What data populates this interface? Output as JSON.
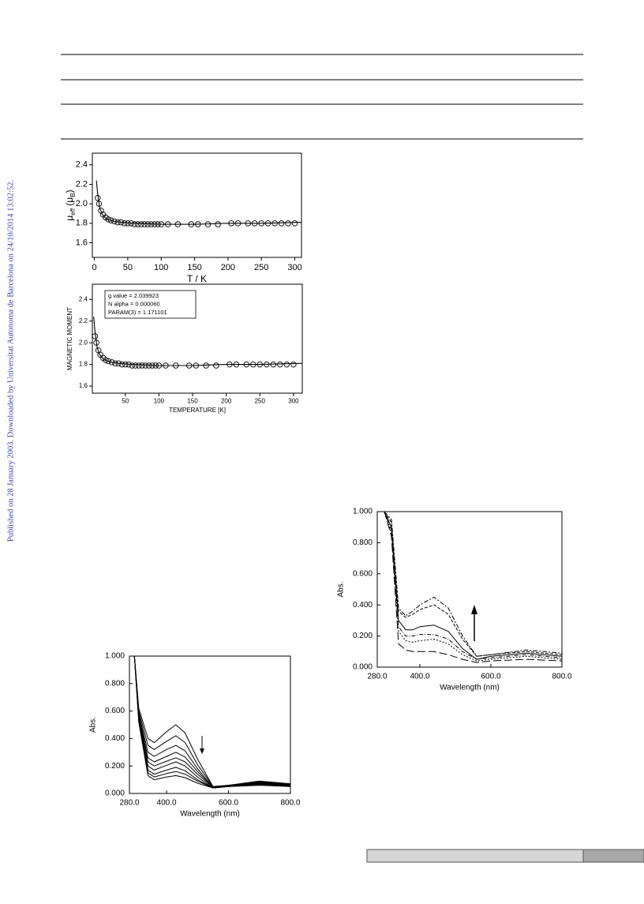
{
  "side_note": "Published on 28 January 2003. Downloaded by Universitat Autonoma de Barcelona on 24/10/2014 13:02:52.",
  "chart_data": [
    {
      "type": "scatter",
      "xlabel": "T / K",
      "ylabel_parts": [
        "μ",
        "eff",
        " (μ",
        "B",
        ")"
      ],
      "xlim": [
        -3,
        310
      ],
      "ylim": [
        1.45,
        2.52
      ],
      "xticks": [
        0,
        50,
        100,
        150,
        200,
        250,
        300
      ],
      "yticks": [
        1.6,
        1.8,
        {
          "value": 2,
          "label": "2.0"
        },
        2.2,
        2.4
      ],
      "series": [
        {
          "style": "markers",
          "x": [
            5,
            7,
            10,
            13,
            17,
            21,
            25,
            30,
            35,
            40,
            45,
            50,
            55,
            60,
            65,
            70,
            75,
            80,
            85,
            90,
            95,
            100,
            110,
            125,
            145,
            155,
            170,
            185,
            205,
            215,
            230,
            240,
            250,
            260,
            270,
            280,
            290,
            300
          ],
          "values": [
            2.06,
            2.0,
            1.93,
            1.89,
            1.86,
            1.84,
            1.83,
            1.82,
            1.81,
            1.81,
            1.8,
            1.8,
            1.8,
            1.79,
            1.79,
            1.79,
            1.79,
            1.79,
            1.79,
            1.79,
            1.79,
            1.79,
            1.79,
            1.79,
            1.79,
            1.79,
            1.79,
            1.79,
            1.8,
            1.8,
            1.8,
            1.8,
            1.8,
            1.8,
            1.8,
            1.8,
            1.8,
            1.8
          ]
        },
        {
          "style": "line",
          "x": [
            3,
            5,
            8,
            12,
            16,
            20,
            30,
            40,
            60,
            100,
            150,
            200,
            250,
            310
          ],
          "values": [
            2.24,
            2.1,
            1.96,
            1.89,
            1.86,
            1.84,
            1.82,
            1.81,
            1.8,
            1.79,
            1.79,
            1.8,
            1.8,
            1.81
          ]
        }
      ]
    },
    {
      "type": "scatter",
      "xlabel": "TEMPERATURE [K]",
      "ylabel": "MAGNETIC MOMENT",
      "notes": [
        "g value =  2.039923",
        "N alpha =  0.000060",
        "PARAM(3) =    1.171101"
      ],
      "xlim": [
        1,
        313
      ],
      "ylim": [
        1.535,
        2.54
      ],
      "xticks": [
        50,
        100,
        150,
        200,
        250,
        300
      ],
      "yticks": [
        1.6,
        1.8,
        {
          "value": 2,
          "label": "2.0"
        },
        2.2,
        2.4
      ],
      "series": [
        {
          "style": "markers",
          "x": [
            5,
            7,
            10,
            13,
            17,
            21,
            25,
            30,
            35,
            40,
            45,
            50,
            55,
            60,
            65,
            70,
            75,
            80,
            85,
            90,
            95,
            100,
            110,
            125,
            145,
            155,
            170,
            185,
            205,
            215,
            230,
            240,
            250,
            260,
            270,
            280,
            290,
            300
          ],
          "values": [
            2.06,
            2.0,
            1.93,
            1.89,
            1.86,
            1.84,
            1.83,
            1.82,
            1.81,
            1.81,
            1.8,
            1.8,
            1.8,
            1.79,
            1.79,
            1.79,
            1.79,
            1.79,
            1.79,
            1.79,
            1.79,
            1.79,
            1.79,
            1.79,
            1.79,
            1.79,
            1.79,
            1.79,
            1.8,
            1.8,
            1.8,
            1.8,
            1.8,
            1.8,
            1.8,
            1.8,
            1.8,
            1.8
          ]
        },
        {
          "style": "line",
          "x": [
            3,
            5,
            8,
            12,
            16,
            20,
            30,
            40,
            60,
            100,
            150,
            200,
            250,
            313
          ],
          "values": [
            2.24,
            2.1,
            1.96,
            1.89,
            1.86,
            1.84,
            1.82,
            1.81,
            1.8,
            1.79,
            1.79,
            1.8,
            1.8,
            1.81
          ]
        }
      ]
    },
    {
      "type": "line",
      "xlabel": "Wavelength (nm)",
      "ylabel": "Abs.",
      "xlim": [
        280,
        800
      ],
      "ylim": [
        0,
        1
      ],
      "xticks": [
        {
          "value": 280,
          "label": "280.0"
        },
        {
          "value": 400,
          "label": "400.0"
        },
        {
          "value": 600,
          "label": "600.0"
        },
        {
          "value": 800,
          "label": "800.0"
        }
      ],
      "yticks": [
        {
          "value": 0,
          "label": "0.000"
        },
        {
          "value": 0.2,
          "label": "0.200"
        },
        {
          "value": 0.4,
          "label": "0.400"
        },
        {
          "value": 0.6,
          "label": "0.600"
        },
        {
          "value": 0.8,
          "label": "0.800"
        },
        {
          "value": 1,
          "label": "1.000"
        }
      ],
      "x": [
        296,
        310,
        340,
        360,
        400,
        430,
        460,
        500,
        550,
        600,
        700,
        800
      ],
      "series": [
        {
          "values": [
            1.0,
            0.62,
            0.4,
            0.37,
            0.45,
            0.5,
            0.44,
            0.25,
            0.05,
            0.06,
            0.09,
            0.07
          ]
        },
        {
          "values": [
            1.0,
            0.6,
            0.35,
            0.32,
            0.38,
            0.42,
            0.37,
            0.21,
            0.05,
            0.06,
            0.085,
            0.07
          ]
        },
        {
          "values": [
            1.0,
            0.58,
            0.3,
            0.27,
            0.32,
            0.35,
            0.31,
            0.18,
            0.045,
            0.06,
            0.08,
            0.065
          ]
        },
        {
          "values": [
            1.0,
            0.57,
            0.26,
            0.23,
            0.27,
            0.3,
            0.265,
            0.16,
            0.045,
            0.055,
            0.08,
            0.065
          ]
        },
        {
          "values": [
            1.0,
            0.56,
            0.23,
            0.2,
            0.235,
            0.26,
            0.23,
            0.14,
            0.045,
            0.055,
            0.075,
            0.06
          ]
        },
        {
          "values": [
            1.0,
            0.55,
            0.2,
            0.17,
            0.205,
            0.23,
            0.2,
            0.12,
            0.04,
            0.055,
            0.075,
            0.06
          ]
        },
        {
          "values": [
            1.0,
            0.54,
            0.17,
            0.14,
            0.17,
            0.19,
            0.165,
            0.1,
            0.04,
            0.05,
            0.07,
            0.055
          ]
        },
        {
          "values": [
            1.0,
            0.53,
            0.15,
            0.12,
            0.145,
            0.16,
            0.14,
            0.09,
            0.04,
            0.05,
            0.065,
            0.055
          ]
        },
        {
          "values": [
            1.0,
            0.52,
            0.13,
            0.1,
            0.12,
            0.13,
            0.115,
            0.075,
            0.04,
            0.05,
            0.06,
            0.05
          ]
        }
      ]
    },
    {
      "type": "line",
      "xlabel": "Wavelength (nm)",
      "ylabel": "Abs.",
      "xlim": [
        280,
        800
      ],
      "ylim": [
        0,
        1
      ],
      "xticks": [
        {
          "value": 280,
          "label": "280.0"
        },
        {
          "value": 400,
          "label": "400.0"
        },
        {
          "value": 600,
          "label": "600.0"
        },
        {
          "value": 800,
          "label": "800.0"
        }
      ],
      "yticks": [
        {
          "value": 0,
          "label": "0.000"
        },
        {
          "value": 0.2,
          "label": "0.200"
        },
        {
          "value": 0.4,
          "label": "0.400"
        },
        {
          "value": 0.6,
          "label": "0.600"
        },
        {
          "value": 0.8,
          "label": "0.800"
        },
        {
          "value": 1,
          "label": "1.000"
        }
      ],
      "x": [
        300,
        320,
        340,
        360,
        380,
        400,
        440,
        480,
        520,
        560,
        600,
        700,
        800
      ],
      "series": [
        {
          "dash": "6 2 2 2",
          "values": [
            1.0,
            0.95,
            0.38,
            0.33,
            0.36,
            0.4,
            0.45,
            0.38,
            0.2,
            0.07,
            0.08,
            0.11,
            0.09
          ]
        },
        {
          "dash": "4 2",
          "values": [
            1.0,
            0.93,
            0.36,
            0.32,
            0.34,
            0.37,
            0.4,
            0.34,
            0.18,
            0.07,
            0.08,
            0.1,
            0.08
          ]
        },
        {
          "dash": "none",
          "values": [
            1.0,
            0.9,
            0.3,
            0.24,
            0.24,
            0.26,
            0.27,
            0.23,
            0.12,
            0.05,
            0.07,
            0.09,
            0.07
          ]
        },
        {
          "dash": "5 2 1 2",
          "values": [
            1.0,
            0.88,
            0.26,
            0.2,
            0.2,
            0.21,
            0.21,
            0.18,
            0.1,
            0.05,
            0.06,
            0.08,
            0.06
          ]
        },
        {
          "dash": "2 2",
          "values": [
            1.0,
            0.86,
            0.23,
            0.17,
            0.16,
            0.17,
            0.18,
            0.15,
            0.08,
            0.04,
            0.05,
            0.07,
            0.05
          ]
        },
        {
          "dash": "10 4",
          "values": [
            1.0,
            0.84,
            0.15,
            0.11,
            0.1,
            0.1,
            0.1,
            0.08,
            0.05,
            0.03,
            0.04,
            0.05,
            0.04
          ]
        }
      ]
    }
  ]
}
